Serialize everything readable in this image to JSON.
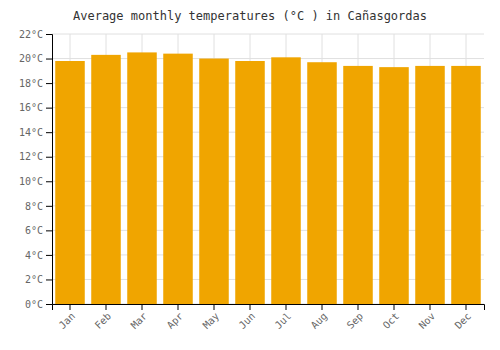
{
  "chart_data": {
    "type": "bar",
    "title": "Average monthly temperatures (°C ) in Cañasgordas",
    "categories": [
      "Jan",
      "Feb",
      "Mar",
      "Apr",
      "May",
      "Jun",
      "Jul",
      "Aug",
      "Sep",
      "Oct",
      "Nov",
      "Dec"
    ],
    "values": [
      19.8,
      20.3,
      20.5,
      20.4,
      20.0,
      19.8,
      20.1,
      19.7,
      19.4,
      19.3,
      19.4,
      19.4
    ],
    "color": "#F0A500",
    "ylim": [
      0,
      22
    ],
    "yticks": [
      {
        "value": 0,
        "label": "0°C"
      },
      {
        "value": 2,
        "label": "2°C"
      },
      {
        "value": 4,
        "label": "4°C"
      },
      {
        "value": 6,
        "label": "6°C"
      },
      {
        "value": 8,
        "label": "8°C"
      },
      {
        "value": 10,
        "label": "10°C"
      },
      {
        "value": 12,
        "label": "12°C"
      },
      {
        "value": 14,
        "label": "14°C"
      },
      {
        "value": 16,
        "label": "16°C"
      },
      {
        "value": 18,
        "label": "18°C"
      },
      {
        "value": 20,
        "label": "20°C"
      },
      {
        "value": 22,
        "label": "22°C"
      }
    ],
    "grid": true
  }
}
